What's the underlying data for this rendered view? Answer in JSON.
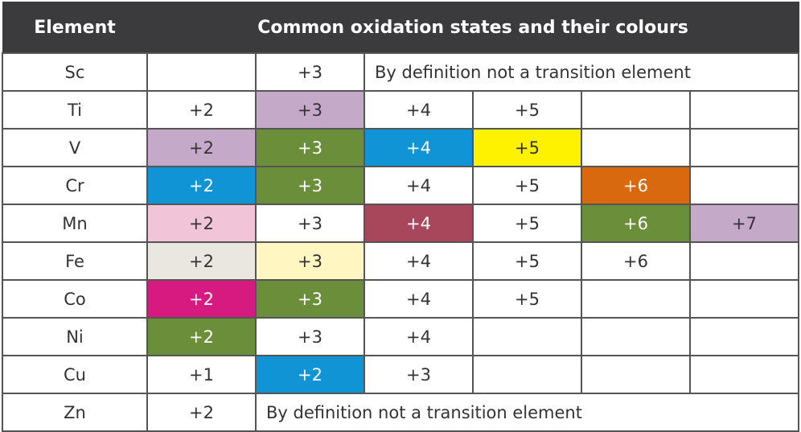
{
  "header": {
    "element": "Element",
    "states": "Common oxidation states and their colours"
  },
  "rows": [
    {
      "element": "Sc",
      "states": [
        null,
        {
          "label": "+3"
        },
        {
          "label": "By definition not a transition element"
        }
      ]
    },
    {
      "element": "Ti",
      "states": [
        {
          "label": "+2"
        },
        {
          "label": "+3",
          "color": "#c4a9c9"
        },
        {
          "label": "+4"
        },
        {
          "label": "+5"
        },
        null,
        null
      ]
    },
    {
      "element": "V",
      "states": [
        {
          "label": "+2",
          "color": "#c4a9c9"
        },
        {
          "label": "+3",
          "color": "#6b8e3b"
        },
        {
          "label": "+4",
          "color": "#1094d6"
        },
        {
          "label": "+5",
          "color": "#fff200"
        },
        null,
        null
      ]
    },
    {
      "element": "Cr",
      "states": [
        {
          "label": "+2",
          "color": "#1094d6"
        },
        {
          "label": "+3",
          "color": "#6b8e3b"
        },
        {
          "label": "+4"
        },
        {
          "label": "+5"
        },
        {
          "label": "+6",
          "color": "#d9690f"
        },
        null
      ]
    },
    {
      "element": "Mn",
      "states": [
        {
          "label": "+2",
          "color": "#f2c4d8"
        },
        {
          "label": "+3"
        },
        {
          "label": "+4",
          "color": "#a8465b"
        },
        {
          "label": "+5"
        },
        {
          "label": "+6",
          "color": "#6b8e3b"
        },
        {
          "label": "+7",
          "color": "#c4a9c9"
        }
      ]
    },
    {
      "element": "Fe",
      "states": [
        {
          "label": "+2",
          "color": "#e9e7df"
        },
        {
          "label": "+3",
          "color": "#fff6c2"
        },
        {
          "label": "+4"
        },
        {
          "label": "+5"
        },
        {
          "label": "+6"
        },
        null
      ]
    },
    {
      "element": "Co",
      "states": [
        {
          "label": "+2",
          "color": "#d61a80"
        },
        {
          "label": "+3",
          "color": "#6b8e3b"
        },
        {
          "label": "+4"
        },
        {
          "label": "+5"
        },
        null,
        null
      ]
    },
    {
      "element": "Ni",
      "states": [
        {
          "label": "+2",
          "color": "#6b8e3b"
        },
        {
          "label": "+3"
        },
        {
          "label": "+4"
        },
        null,
        null,
        null
      ]
    },
    {
      "element": "Cu",
      "states": [
        {
          "label": "+1"
        },
        {
          "label": "+2",
          "color": "#1094d6"
        },
        {
          "label": "+3"
        },
        null,
        null,
        null
      ]
    },
    {
      "element": "Zn",
      "states": [
        {
          "label": "+2"
        },
        {
          "label": "By definition not a transition element"
        }
      ]
    }
  ]
}
